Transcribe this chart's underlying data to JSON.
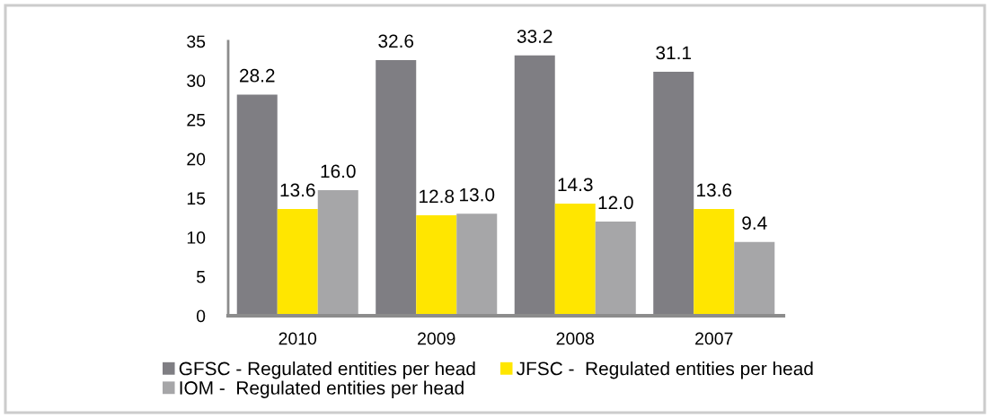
{
  "chart_data": {
    "type": "bar",
    "categories": [
      "2010",
      "2009",
      "2008",
      "2007"
    ],
    "series": [
      {
        "name": "GFSC - Regulated entities per head",
        "color": "#7f7e83",
        "values": [
          28.2,
          32.6,
          33.2,
          31.1
        ],
        "value_labels": [
          "28.2",
          "32.6",
          "33.2",
          "31.1"
        ]
      },
      {
        "name": "JFSC -  Regulated entities per head",
        "color": "#ffe600",
        "values": [
          13.6,
          12.8,
          14.3,
          13.6
        ],
        "value_labels": [
          "13.6",
          "12.8",
          "14.3",
          "13.6"
        ]
      },
      {
        "name": "IOM -  Regulated entities per head",
        "color": "#a6a6a8",
        "values": [
          16.0,
          13.0,
          12.0,
          9.4
        ],
        "value_labels": [
          "16.0",
          "13.0",
          "12.0",
          "9.4"
        ]
      }
    ],
    "ylim": [
      0,
      35
    ],
    "yticks": [
      0,
      5,
      10,
      15,
      20,
      25,
      30,
      35
    ],
    "grid": false,
    "legend": "bottom"
  }
}
